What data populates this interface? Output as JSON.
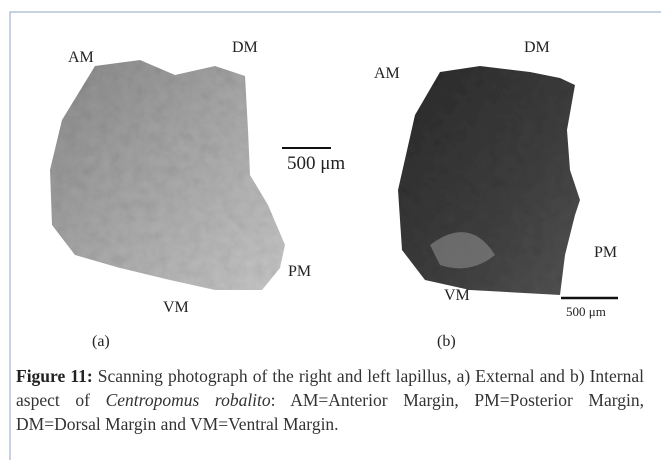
{
  "figure": {
    "panels": [
      {
        "labels": [
          "AM",
          "DM",
          "PM",
          "VM"
        ],
        "scale_bar": "500 μm",
        "caption_label": "(a)"
      },
      {
        "labels": [
          "AM",
          "DM",
          "PM",
          "VM"
        ],
        "scale_bar": "500 μm",
        "caption_label": "(b)"
      }
    ],
    "caption": {
      "label": "Figure 11:",
      "text_before": "Scanning photograph of the right and left lapillus, a) External and b) Internal aspect of",
      "species": "Centropomus robalito",
      "text_after": ": AM=Anterior Margin, PM=Posterior Margin, DM=Dorsal Margin and VM=Ventral Margin."
    }
  }
}
